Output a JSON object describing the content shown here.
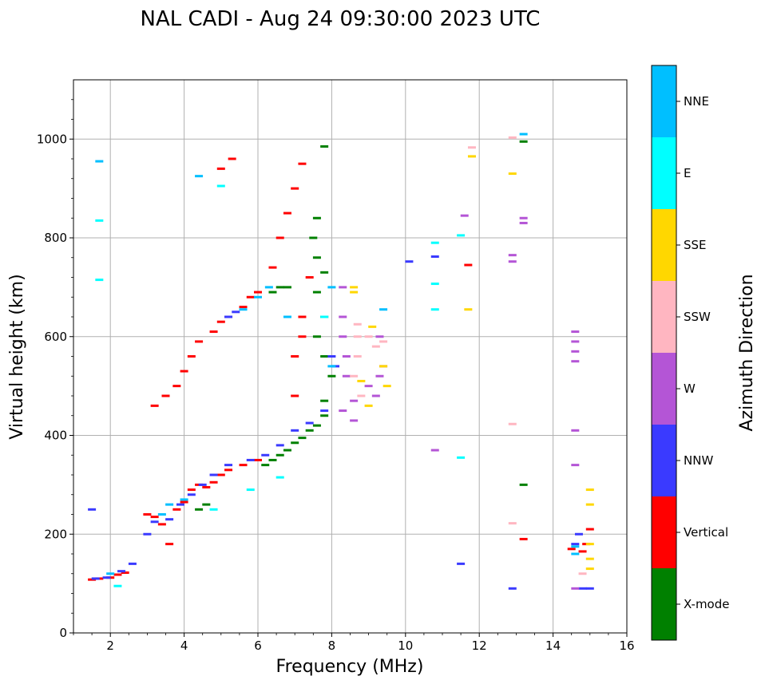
{
  "chart_data": {
    "type": "scatter",
    "title": "NAL CADI - Aug 24 09:30:00 2023 UTC",
    "xlabel": "Frequency (MHz)",
    "ylabel": "Virtual height (km)",
    "xlim": [
      1,
      16
    ],
    "ylim": [
      0,
      1120
    ],
    "xticks": [
      2,
      4,
      6,
      8,
      10,
      12,
      14,
      16
    ],
    "yticks": [
      0,
      200,
      400,
      600,
      800,
      1000
    ],
    "grid": true,
    "colorbar": {
      "label": "Azimuth Direction",
      "categories": [
        {
          "name": "X-mode",
          "color": "#008000"
        },
        {
          "name": "Vertical",
          "color": "#ff0000"
        },
        {
          "name": "NNW",
          "color": "#3a3aff"
        },
        {
          "name": "W",
          "color": "#b455d6"
        },
        {
          "name": "SSW",
          "color": "#ffb6c1"
        },
        {
          "name": "SSE",
          "color": "#ffd700"
        },
        {
          "name": "E",
          "color": "#00ffff"
        },
        {
          "name": "NNE",
          "color": "#00bfff"
        }
      ]
    },
    "series": [
      {
        "name": "Vertical",
        "points": [
          [
            1.5,
            108
          ],
          [
            1.7,
            110
          ],
          [
            2.0,
            112
          ],
          [
            2.2,
            118
          ],
          [
            2.4,
            122
          ],
          [
            3.0,
            240
          ],
          [
            3.2,
            235
          ],
          [
            3.4,
            220
          ],
          [
            3.6,
            180
          ],
          [
            3.8,
            250
          ],
          [
            4.0,
            265
          ],
          [
            4.2,
            290
          ],
          [
            4.4,
            300
          ],
          [
            4.6,
            295
          ],
          [
            4.8,
            305
          ],
          [
            5.0,
            320
          ],
          [
            5.2,
            330
          ],
          [
            5.6,
            340
          ],
          [
            6.0,
            350
          ],
          [
            3.2,
            460
          ],
          [
            3.5,
            480
          ],
          [
            3.8,
            500
          ],
          [
            4.0,
            530
          ],
          [
            4.2,
            560
          ],
          [
            4.4,
            590
          ],
          [
            4.8,
            610
          ],
          [
            5.0,
            630
          ],
          [
            5.2,
            640
          ],
          [
            5.6,
            660
          ],
          [
            5.8,
            680
          ],
          [
            6.0,
            690
          ],
          [
            6.4,
            740
          ],
          [
            6.6,
            800
          ],
          [
            6.8,
            850
          ],
          [
            7.0,
            900
          ],
          [
            7.2,
            950
          ],
          [
            7.0,
            480
          ],
          [
            7.0,
            560
          ],
          [
            7.2,
            640
          ],
          [
            7.4,
            720
          ],
          [
            7.2,
            600
          ],
          [
            5.0,
            940
          ],
          [
            5.3,
            960
          ],
          [
            13.2,
            190
          ],
          [
            14.5,
            170
          ],
          [
            14.8,
            165
          ],
          [
            14.9,
            180
          ],
          [
            15.0,
            210
          ],
          [
            11.7,
            745
          ]
        ]
      },
      {
        "name": "X-mode",
        "points": [
          [
            6.2,
            340
          ],
          [
            6.4,
            350
          ],
          [
            6.6,
            360
          ],
          [
            6.8,
            370
          ],
          [
            7.0,
            385
          ],
          [
            7.2,
            395
          ],
          [
            7.4,
            410
          ],
          [
            7.6,
            420
          ],
          [
            7.8,
            440
          ],
          [
            7.8,
            470
          ],
          [
            8.0,
            520
          ],
          [
            7.8,
            560
          ],
          [
            7.6,
            600
          ],
          [
            7.8,
            640
          ],
          [
            7.6,
            690
          ],
          [
            7.8,
            730
          ],
          [
            7.6,
            760
          ],
          [
            6.4,
            690
          ],
          [
            6.6,
            700
          ],
          [
            6.8,
            700
          ],
          [
            7.6,
            840
          ],
          [
            7.8,
            985
          ],
          [
            7.5,
            800
          ],
          [
            4.4,
            250
          ],
          [
            4.6,
            260
          ],
          [
            13.2,
            300
          ],
          [
            13.2,
            995
          ]
        ]
      },
      {
        "name": "NNW",
        "points": [
          [
            1.6,
            110
          ],
          [
            1.9,
            112
          ],
          [
            2.3,
            125
          ],
          [
            2.6,
            140
          ],
          [
            3.0,
            200
          ],
          [
            3.2,
            225
          ],
          [
            3.6,
            230
          ],
          [
            3.9,
            260
          ],
          [
            4.2,
            280
          ],
          [
            4.5,
            300
          ],
          [
            4.8,
            320
          ],
          [
            5.2,
            340
          ],
          [
            5.8,
            350
          ],
          [
            6.2,
            360
          ],
          [
            6.6,
            380
          ],
          [
            7.0,
            410
          ],
          [
            7.4,
            425
          ],
          [
            7.8,
            450
          ],
          [
            8.0,
            560
          ],
          [
            5.2,
            640
          ],
          [
            5.4,
            650
          ],
          [
            8.1,
            540
          ],
          [
            10.1,
            752
          ],
          [
            10.8,
            762
          ],
          [
            12.9,
            90
          ],
          [
            14.6,
            180
          ],
          [
            14.7,
            200
          ],
          [
            14.8,
            90
          ],
          [
            15.0,
            90
          ],
          [
            11.5,
            140
          ],
          [
            1.5,
            250
          ]
        ]
      },
      {
        "name": "W",
        "points": [
          [
            8.3,
            700
          ],
          [
            8.3,
            640
          ],
          [
            8.3,
            600
          ],
          [
            8.4,
            560
          ],
          [
            8.4,
            520
          ],
          [
            8.3,
            450
          ],
          [
            8.6,
            470
          ],
          [
            8.6,
            430
          ],
          [
            9.0,
            500
          ],
          [
            9.2,
            480
          ],
          [
            9.4,
            540
          ],
          [
            9.3,
            600
          ],
          [
            9.3,
            520
          ],
          [
            14.6,
            610
          ],
          [
            14.6,
            590
          ],
          [
            14.6,
            570
          ],
          [
            14.6,
            550
          ],
          [
            14.6,
            410
          ],
          [
            14.6,
            340
          ],
          [
            14.6,
            90
          ],
          [
            12.9,
            765
          ],
          [
            12.9,
            752
          ],
          [
            13.2,
            830
          ],
          [
            13.2,
            840
          ],
          [
            11.6,
            845
          ],
          [
            10.8,
            370
          ]
        ]
      },
      {
        "name": "SSW",
        "points": [
          [
            8.7,
            625
          ],
          [
            8.7,
            600
          ],
          [
            8.7,
            560
          ],
          [
            8.6,
            520
          ],
          [
            8.8,
            480
          ],
          [
            9.0,
            600
          ],
          [
            9.2,
            580
          ],
          [
            9.4,
            590
          ],
          [
            12.9,
            1003
          ],
          [
            12.9,
            423
          ],
          [
            12.9,
            222
          ],
          [
            11.8,
            983
          ],
          [
            14.8,
            120
          ]
        ]
      },
      {
        "name": "SSE",
        "points": [
          [
            8.6,
            700
          ],
          [
            8.6,
            690
          ],
          [
            8.8,
            510
          ],
          [
            9.0,
            460
          ],
          [
            9.1,
            620
          ],
          [
            9.4,
            540
          ],
          [
            9.5,
            500
          ],
          [
            11.8,
            965
          ],
          [
            11.7,
            655
          ],
          [
            12.9,
            930
          ],
          [
            15.0,
            290
          ],
          [
            15.0,
            260
          ],
          [
            15.0,
            180
          ],
          [
            15.0,
            150
          ],
          [
            15.0,
            130
          ]
        ]
      },
      {
        "name": "E",
        "points": [
          [
            1.7,
            835
          ],
          [
            1.7,
            715
          ],
          [
            2.2,
            95
          ],
          [
            5.0,
            905
          ],
          [
            4.8,
            250
          ],
          [
            5.8,
            290
          ],
          [
            6.6,
            315
          ],
          [
            7.8,
            640
          ],
          [
            10.8,
            790
          ],
          [
            10.8,
            707
          ],
          [
            10.8,
            655
          ],
          [
            11.5,
            805
          ],
          [
            11.5,
            355
          ]
        ]
      },
      {
        "name": "NNE",
        "points": [
          [
            1.7,
            955
          ],
          [
            2.0,
            120
          ],
          [
            3.4,
            240
          ],
          [
            3.6,
            260
          ],
          [
            4.0,
            270
          ],
          [
            4.4,
            925
          ],
          [
            5.6,
            655
          ],
          [
            6.0,
            680
          ],
          [
            6.3,
            700
          ],
          [
            6.8,
            640
          ],
          [
            8.0,
            700
          ],
          [
            8.0,
            540
          ],
          [
            9.4,
            655
          ],
          [
            13.2,
            1010
          ],
          [
            14.6,
            175
          ],
          [
            14.6,
            160
          ]
        ]
      }
    ]
  }
}
